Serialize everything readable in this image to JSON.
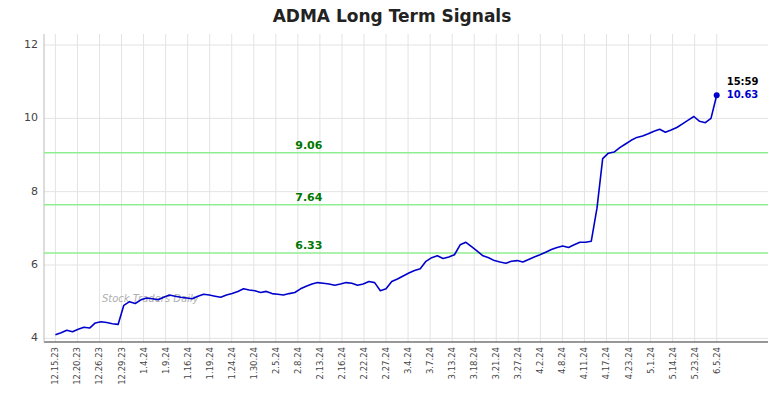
{
  "chart_data": {
    "type": "line",
    "title": "ADMA Long Term Signals",
    "watermark": "Stock Traders Daily",
    "color": "#0000cc",
    "grid": true,
    "values": [
      4.1,
      4.15,
      4.22,
      4.18,
      4.25,
      4.3,
      4.28,
      4.42,
      4.45,
      4.43,
      4.4,
      4.38,
      4.9,
      5.0,
      4.95,
      5.05,
      5.1,
      5.08,
      5.05,
      5.12,
      5.18,
      5.15,
      5.12,
      5.1,
      5.08,
      5.15,
      5.2,
      5.18,
      5.15,
      5.12,
      5.18,
      5.22,
      5.28,
      5.35,
      5.32,
      5.3,
      5.25,
      5.28,
      5.22,
      5.2,
      5.18,
      5.22,
      5.25,
      5.35,
      5.42,
      5.48,
      5.52,
      5.5,
      5.48,
      5.45,
      5.48,
      5.52,
      5.5,
      5.45,
      5.48,
      5.55,
      5.52,
      5.3,
      5.35,
      5.55,
      5.62,
      5.7,
      5.78,
      5.85,
      5.9,
      6.1,
      6.2,
      6.25,
      6.18,
      6.22,
      6.28,
      6.55,
      6.62,
      6.5,
      6.38,
      6.25,
      6.2,
      6.12,
      6.08,
      6.05,
      6.1,
      6.12,
      6.08,
      6.15,
      6.22,
      6.28,
      6.35,
      6.42,
      6.48,
      6.52,
      6.48,
      6.55,
      6.62,
      6.62,
      6.65,
      7.55,
      8.9,
      9.05,
      9.08,
      9.2,
      9.3,
      9.4,
      9.48,
      9.52,
      9.58,
      9.65,
      9.7,
      9.62,
      9.68,
      9.75,
      9.85,
      9.95,
      10.05,
      9.92,
      9.88,
      10.0,
      10.63
    ],
    "hlines": [
      {
        "value": 6.33,
        "label": "6.33",
        "color": "#90EE90"
      },
      {
        "value": 7.64,
        "label": "7.64",
        "color": "#90EE90"
      },
      {
        "value": 9.06,
        "label": "9.06",
        "color": "#90EE90"
      }
    ],
    "annotations": [
      {
        "text": "15:59",
        "color": "#000000"
      },
      {
        "text": "10.63",
        "color": "#0000cc"
      }
    ],
    "xlim": [
      -2,
      125
    ],
    "xticks": [
      {
        "value": 0,
        "label": "12.15.23"
      },
      {
        "value": 3.8667,
        "label": "12.20.23"
      },
      {
        "value": 7.7333,
        "label": "12.26.23"
      },
      {
        "value": 11.6,
        "label": "12.29.23"
      },
      {
        "value": 15.4667,
        "label": "1.4.24"
      },
      {
        "value": 19.3333,
        "label": "1.9.24"
      },
      {
        "value": 23.2,
        "label": "1.16.24"
      },
      {
        "value": 27.0667,
        "label": "1.19.24"
      },
      {
        "value": 30.9333,
        "label": "1.24.24"
      },
      {
        "value": 34.8,
        "label": "1.30.24"
      },
      {
        "value": 38.6667,
        "label": "2.5.24"
      },
      {
        "value": 42.5333,
        "label": "2.8.24"
      },
      {
        "value": 46.4,
        "label": "2.13.24"
      },
      {
        "value": 50.2667,
        "label": "2.16.24"
      },
      {
        "value": 54.1333,
        "label": "2.22.24"
      },
      {
        "value": 58,
        "label": "2.27.24"
      },
      {
        "value": 61.8667,
        "label": "3.4.24"
      },
      {
        "value": 65.7333,
        "label": "3.7.24"
      },
      {
        "value": 69.6,
        "label": "3.13.24"
      },
      {
        "value": 73.4667,
        "label": "3.18.24"
      },
      {
        "value": 77.3333,
        "label": "3.21.24"
      },
      {
        "value": 81.2,
        "label": "3.27.24"
      },
      {
        "value": 85.0667,
        "label": "4.2.24"
      },
      {
        "value": 88.9333,
        "label": "4.8.24"
      },
      {
        "value": 92.8,
        "label": "4.11.24"
      },
      {
        "value": 96.6667,
        "label": "4.17.24"
      },
      {
        "value": 100.5333,
        "label": "4.23.24"
      },
      {
        "value": 104.4,
        "label": "5.1.24"
      },
      {
        "value": 108.2667,
        "label": "5.14.24"
      },
      {
        "value": 112.1333,
        "label": "5.23.24"
      },
      {
        "value": 116,
        "label": "6.5.24"
      }
    ],
    "ylim": [
      3.9,
      12.3
    ],
    "yticks": [
      4,
      6,
      8,
      10,
      12
    ]
  }
}
